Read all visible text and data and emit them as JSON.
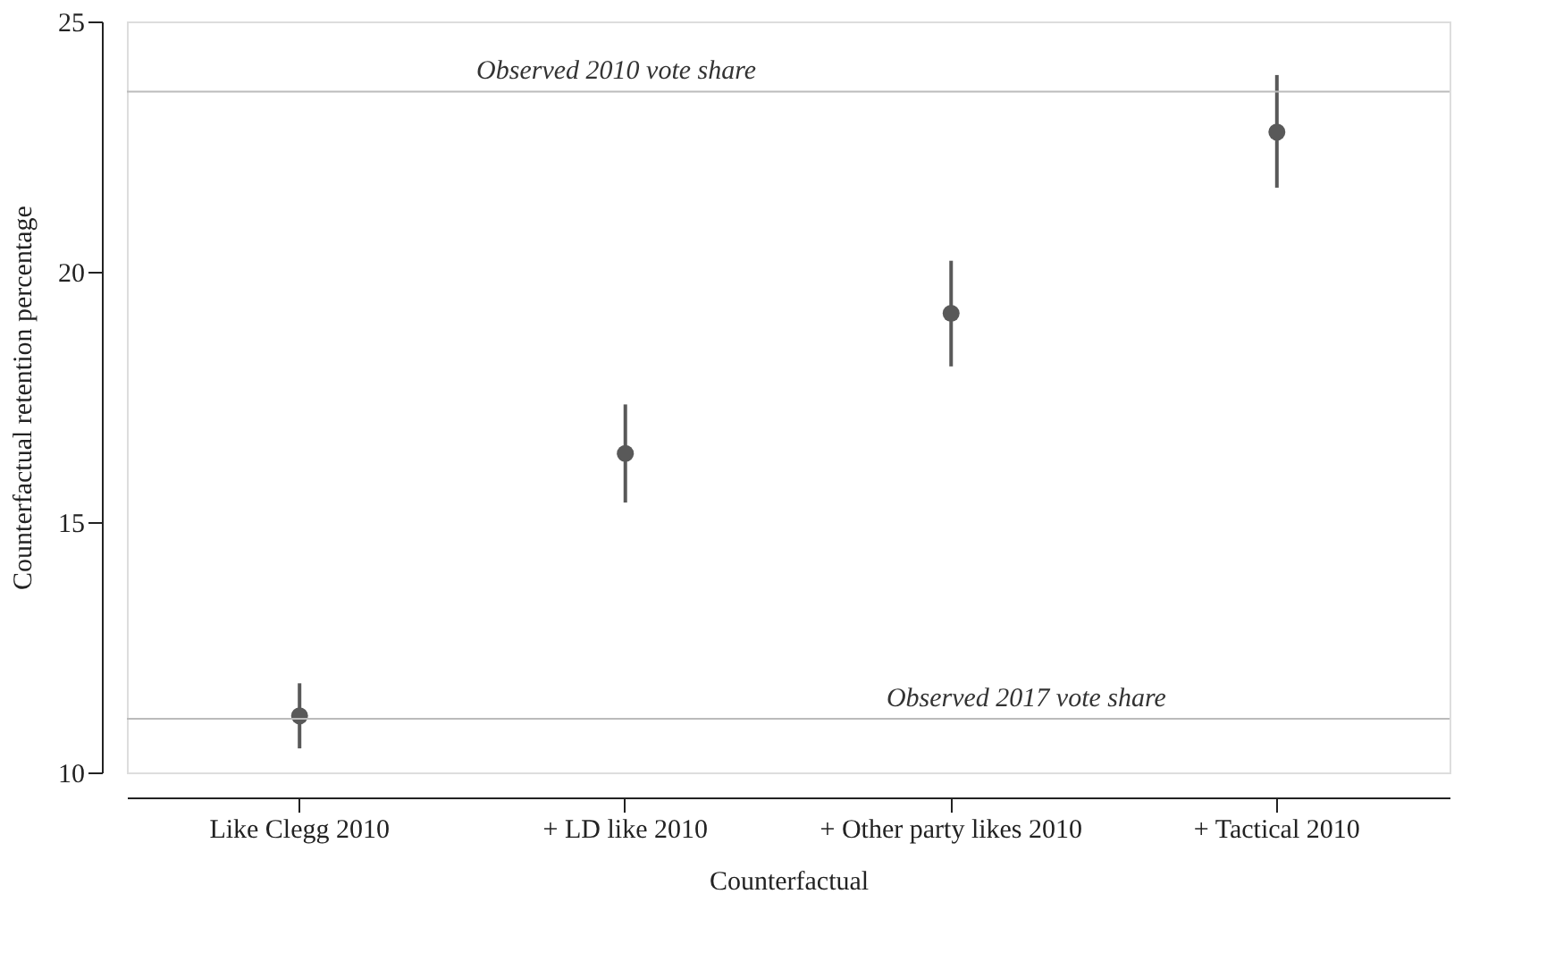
{
  "chart_data": {
    "type": "scatter",
    "xlabel": "Counterfactual",
    "ylabel": "Counterfactual retention percentage",
    "categories": [
      "Like Clegg 2010",
      "+ LD like 2010",
      "+ Other party likes 2010",
      "+ Tactical 2010"
    ],
    "series": [
      {
        "color": "#595959",
        "values": [
          11.13,
          16.37,
          19.17,
          22.79
        ],
        "errors": [
          [
            10.48,
            11.78
          ],
          [
            15.39,
            17.35
          ],
          [
            18.11,
            20.22
          ],
          [
            21.68,
            23.93
          ]
        ]
      }
    ],
    "ylim": [
      10,
      25
    ],
    "yticks": [
      10,
      15,
      20,
      25
    ],
    "grid": false,
    "marker": "circle",
    "ref_lines": [
      {
        "axis": "y",
        "value": 23.6,
        "label": "Observed 2010 vote share",
        "color": "#bbbbbb"
      },
      {
        "axis": "y",
        "value": 11.07,
        "label": "Observed 2017 vote share",
        "color": "#bbbbbb"
      }
    ]
  }
}
